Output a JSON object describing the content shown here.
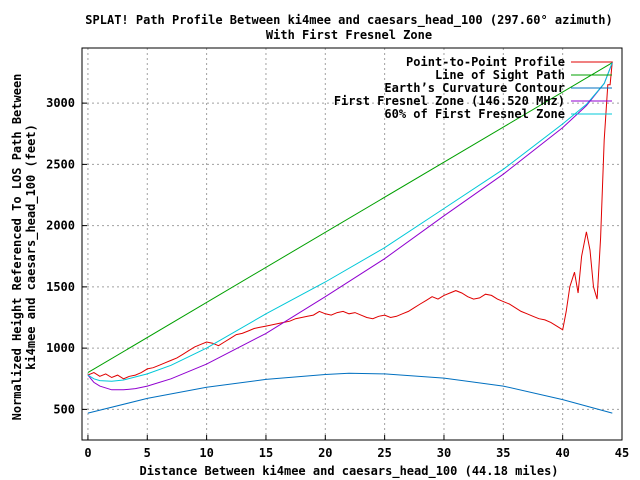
{
  "chart_data": {
    "type": "line",
    "title": "SPLAT! Path Profile Between ki4mee and caesars_head_100 (297.60° azimuth)",
    "subtitle": "With First Fresnel Zone",
    "xlabel": "Distance Between ki4mee and caesars_head_100 (44.18 miles)",
    "ylabel": [
      "Normalized Height Referenced To LOS Path Between",
      "ki4mee and caesars_head_100 (feet)"
    ],
    "xlim": [
      -0.5,
      45
    ],
    "ylim": [
      250,
      3450
    ],
    "x_ticks": [
      0,
      5,
      10,
      15,
      20,
      25,
      30,
      35,
      40,
      45
    ],
    "y_ticks": [
      500,
      1000,
      1500,
      2000,
      2500,
      3000
    ],
    "grid": true,
    "legend_position": "top-right",
    "series": [
      {
        "name": "Point-to-Point Profile",
        "color": "#e00000",
        "points": [
          [
            0,
            780
          ],
          [
            0.5,
            800
          ],
          [
            1,
            770
          ],
          [
            1.5,
            790
          ],
          [
            2,
            760
          ],
          [
            2.5,
            780
          ],
          [
            3,
            750
          ],
          [
            3.5,
            770
          ],
          [
            4,
            780
          ],
          [
            4.5,
            800
          ],
          [
            5,
            830
          ],
          [
            5.5,
            840
          ],
          [
            6,
            860
          ],
          [
            6.5,
            880
          ],
          [
            7,
            900
          ],
          [
            7.5,
            920
          ],
          [
            8,
            950
          ],
          [
            8.5,
            980
          ],
          [
            9,
            1010
          ],
          [
            9.5,
            1030
          ],
          [
            10,
            1050
          ],
          [
            10.5,
            1040
          ],
          [
            11,
            1020
          ],
          [
            11.5,
            1050
          ],
          [
            12,
            1080
          ],
          [
            12.5,
            1110
          ],
          [
            13,
            1120
          ],
          [
            13.5,
            1140
          ],
          [
            14,
            1160
          ],
          [
            14.5,
            1170
          ],
          [
            15,
            1180
          ],
          [
            15.5,
            1190
          ],
          [
            16,
            1200
          ],
          [
            16.5,
            1210
          ],
          [
            17,
            1220
          ],
          [
            17.5,
            1240
          ],
          [
            18,
            1250
          ],
          [
            18.5,
            1260
          ],
          [
            19,
            1270
          ],
          [
            19.5,
            1300
          ],
          [
            20,
            1280
          ],
          [
            20.5,
            1270
          ],
          [
            21,
            1290
          ],
          [
            21.5,
            1300
          ],
          [
            22,
            1280
          ],
          [
            22.5,
            1290
          ],
          [
            23,
            1270
          ],
          [
            23.5,
            1250
          ],
          [
            24,
            1240
          ],
          [
            24.5,
            1260
          ],
          [
            25,
            1270
          ],
          [
            25.5,
            1250
          ],
          [
            26,
            1260
          ],
          [
            26.5,
            1280
          ],
          [
            27,
            1300
          ],
          [
            27.5,
            1330
          ],
          [
            28,
            1360
          ],
          [
            28.5,
            1390
          ],
          [
            29,
            1420
          ],
          [
            29.5,
            1400
          ],
          [
            30,
            1430
          ],
          [
            30.5,
            1450
          ],
          [
            31,
            1470
          ],
          [
            31.5,
            1450
          ],
          [
            32,
            1420
          ],
          [
            32.5,
            1400
          ],
          [
            33,
            1410
          ],
          [
            33.5,
            1440
          ],
          [
            34,
            1430
          ],
          [
            34.5,
            1400
          ],
          [
            35,
            1380
          ],
          [
            35.5,
            1360
          ],
          [
            36,
            1330
          ],
          [
            36.5,
            1300
          ],
          [
            37,
            1280
          ],
          [
            37.5,
            1260
          ],
          [
            38,
            1240
          ],
          [
            38.5,
            1230
          ],
          [
            39,
            1210
          ],
          [
            39.5,
            1180
          ],
          [
            40,
            1150
          ],
          [
            40.3,
            1300
          ],
          [
            40.6,
            1500
          ],
          [
            41,
            1620
          ],
          [
            41.3,
            1450
          ],
          [
            41.6,
            1750
          ],
          [
            42,
            1950
          ],
          [
            42.3,
            1800
          ],
          [
            42.6,
            1500
          ],
          [
            42.9,
            1400
          ],
          [
            43.2,
            1900
          ],
          [
            43.5,
            2700
          ],
          [
            43.8,
            3150
          ],
          [
            44,
            3150
          ],
          [
            44.18,
            3340
          ]
        ]
      },
      {
        "name": "Line of Sight Path",
        "color": "#00a000",
        "points": [
          [
            0,
            800
          ],
          [
            44.18,
            3330
          ]
        ]
      },
      {
        "name": "Earth’s Curvature Contour",
        "color": "#0070c0",
        "points": [
          [
            0,
            470
          ],
          [
            5,
            590
          ],
          [
            10,
            680
          ],
          [
            15,
            745
          ],
          [
            20,
            785
          ],
          [
            22,
            795
          ],
          [
            25,
            790
          ],
          [
            30,
            755
          ],
          [
            35,
            690
          ],
          [
            40,
            580
          ],
          [
            44.18,
            470
          ]
        ]
      },
      {
        "name": "First Fresnel Zone (146.520 MHz)",
        "color": "#9000d0",
        "points": [
          [
            0,
            780
          ],
          [
            0.5,
            720
          ],
          [
            1,
            690
          ],
          [
            2,
            660
          ],
          [
            3,
            660
          ],
          [
            4,
            670
          ],
          [
            5,
            690
          ],
          [
            7,
            750
          ],
          [
            10,
            870
          ],
          [
            15,
            1120
          ],
          [
            20,
            1420
          ],
          [
            25,
            1730
          ],
          [
            30,
            2080
          ],
          [
            35,
            2420
          ],
          [
            40,
            2800
          ],
          [
            42,
            2980
          ],
          [
            43.5,
            3160
          ],
          [
            44.18,
            3330
          ]
        ]
      },
      {
        "name": "60% of First Fresnel Zone",
        "color": "#00c8d8",
        "points": [
          [
            0,
            780
          ],
          [
            0.5,
            750
          ],
          [
            1,
            735
          ],
          [
            2,
            730
          ],
          [
            3,
            740
          ],
          [
            5,
            790
          ],
          [
            7,
            860
          ],
          [
            10,
            1000
          ],
          [
            15,
            1280
          ],
          [
            20,
            1540
          ],
          [
            25,
            1820
          ],
          [
            30,
            2140
          ],
          [
            35,
            2460
          ],
          [
            40,
            2830
          ],
          [
            42,
            2990
          ],
          [
            43.5,
            3160
          ],
          [
            44.18,
            3330
          ]
        ]
      }
    ]
  }
}
